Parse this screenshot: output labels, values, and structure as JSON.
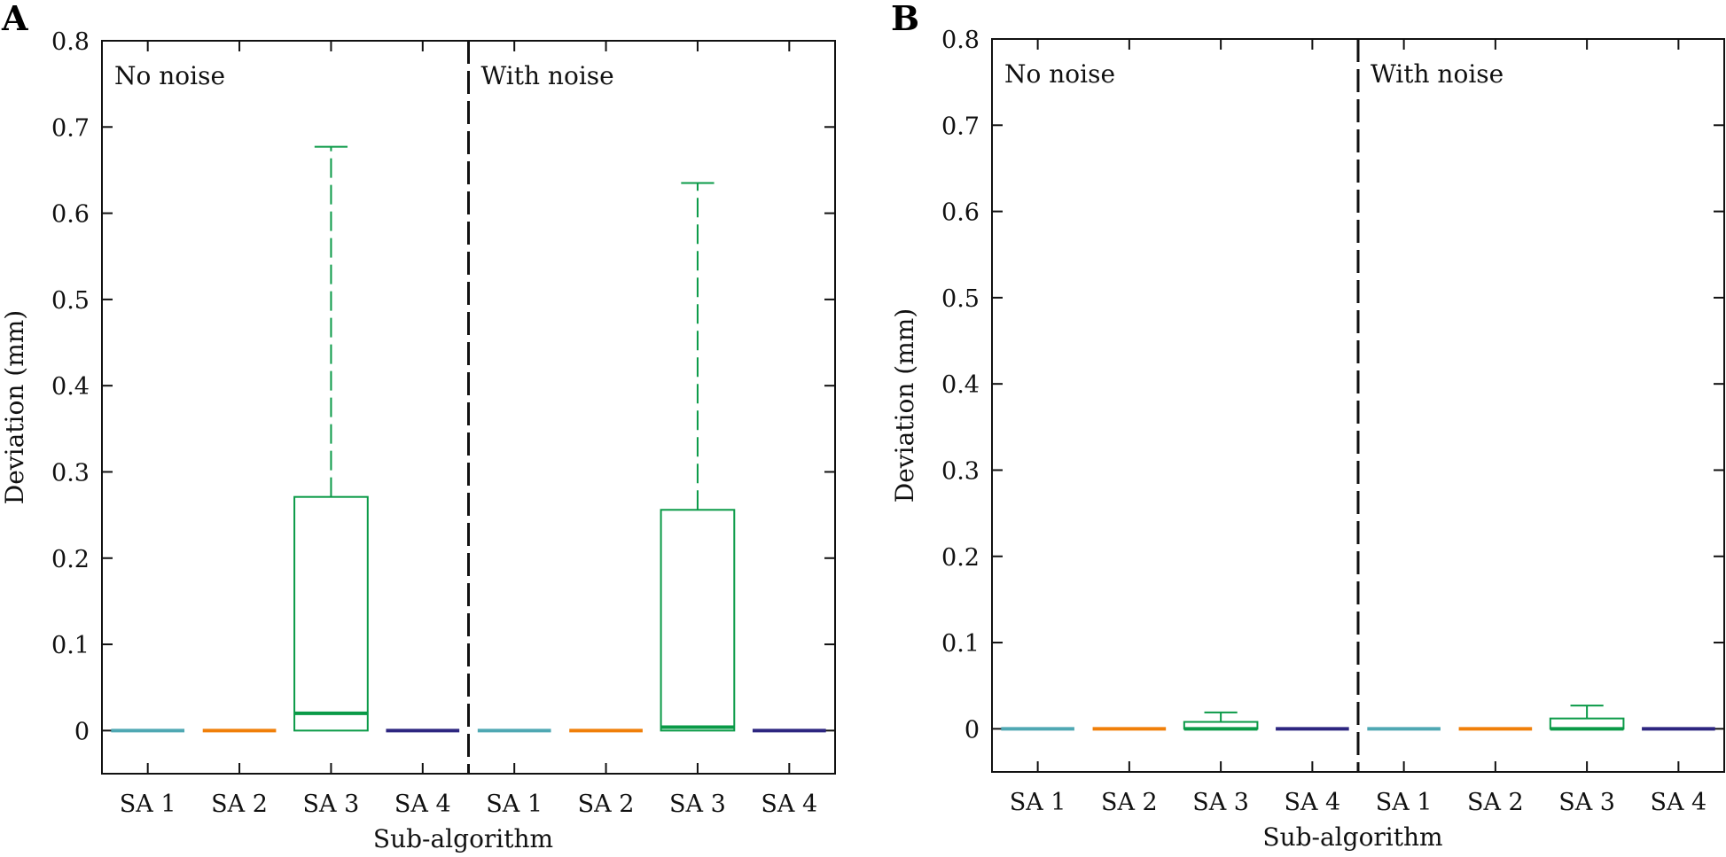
{
  "chart_data": [
    {
      "panel": "A",
      "type": "box",
      "xlabel": "Sub-algorithm",
      "ylabel": "Deviation (mm)",
      "ylim": [
        -0.05,
        0.8
      ],
      "yticks": [
        0,
        0.1,
        0.2,
        0.3,
        0.4,
        0.5,
        0.6,
        0.7,
        0.8
      ],
      "ytick_labels": [
        "0",
        "0.1",
        "0.2",
        "0.3",
        "0.4",
        "0.5",
        "0.6",
        "0.7",
        "0.8"
      ],
      "groups": [
        {
          "label": "No noise",
          "boxes": [
            {
              "category": "SA 1",
              "color": "#4fa8b3",
              "min": 0,
              "q1": 0,
              "median": 0,
              "q3": 0,
              "max": 0
            },
            {
              "category": "SA 2",
              "color": "#f07f09",
              "min": 0,
              "q1": 0,
              "median": 0,
              "q3": 0,
              "max": 0
            },
            {
              "category": "SA 3",
              "color": "#0a9a47",
              "min": 0,
              "q1": 0,
              "median": 0.02,
              "q3": 0.271,
              "max": 0.677
            },
            {
              "category": "SA 4",
              "color": "#2d2680",
              "min": 0,
              "q1": 0,
              "median": 0,
              "q3": 0,
              "max": 0
            }
          ]
        },
        {
          "label": "With noise",
          "boxes": [
            {
              "category": "SA 1",
              "color": "#4fa8b3",
              "min": 0,
              "q1": 0,
              "median": 0,
              "q3": 0,
              "max": 0
            },
            {
              "category": "SA 2",
              "color": "#f07f09",
              "min": 0,
              "q1": 0,
              "median": 0,
              "q3": 0,
              "max": 0
            },
            {
              "category": "SA 3",
              "color": "#0a9a47",
              "min": 0,
              "q1": 0,
              "median": 0.004,
              "q3": 0.256,
              "max": 0.635
            },
            {
              "category": "SA 4",
              "color": "#2d2680",
              "min": 0,
              "q1": 0,
              "median": 0,
              "q3": 0,
              "max": 0
            }
          ]
        }
      ]
    },
    {
      "panel": "B",
      "type": "box",
      "xlabel": "Sub-algorithm",
      "ylabel": "Deviation (mm)",
      "ylim": [
        -0.05,
        0.8
      ],
      "yticks": [
        0,
        0.1,
        0.2,
        0.3,
        0.4,
        0.5,
        0.6,
        0.7,
        0.8
      ],
      "ytick_labels": [
        "0",
        "0.1",
        "0.2",
        "0.3",
        "0.4",
        "0.5",
        "0.6",
        "0.7",
        "0.8"
      ],
      "groups": [
        {
          "label": "No noise",
          "boxes": [
            {
              "category": "SA 1",
              "color": "#4fa8b3",
              "min": 0,
              "q1": 0,
              "median": 0,
              "q3": 0,
              "max": 0
            },
            {
              "category": "SA 2",
              "color": "#f07f09",
              "min": 0,
              "q1": 0,
              "median": 0,
              "q3": 0,
              "max": 0
            },
            {
              "category": "SA 3",
              "color": "#0a9a47",
              "min": 0,
              "q1": 0,
              "median": 0,
              "q3": 0.008,
              "max": 0.019
            },
            {
              "category": "SA 4",
              "color": "#2d2680",
              "min": 0,
              "q1": 0,
              "median": 0,
              "q3": 0,
              "max": 0
            }
          ]
        },
        {
          "label": "With noise",
          "boxes": [
            {
              "category": "SA 1",
              "color": "#4fa8b3",
              "min": 0,
              "q1": 0,
              "median": 0,
              "q3": 0,
              "max": 0
            },
            {
              "category": "SA 2",
              "color": "#f07f09",
              "min": 0,
              "q1": 0,
              "median": 0,
              "q3": 0,
              "max": 0
            },
            {
              "category": "SA 3",
              "color": "#0a9a47",
              "min": 0,
              "q1": 0,
              "median": 0,
              "q3": 0.012,
              "max": 0.027
            },
            {
              "category": "SA 4",
              "color": "#2d2680",
              "min": 0,
              "q1": 0,
              "median": 0,
              "q3": 0,
              "max": 0
            }
          ]
        }
      ]
    }
  ]
}
